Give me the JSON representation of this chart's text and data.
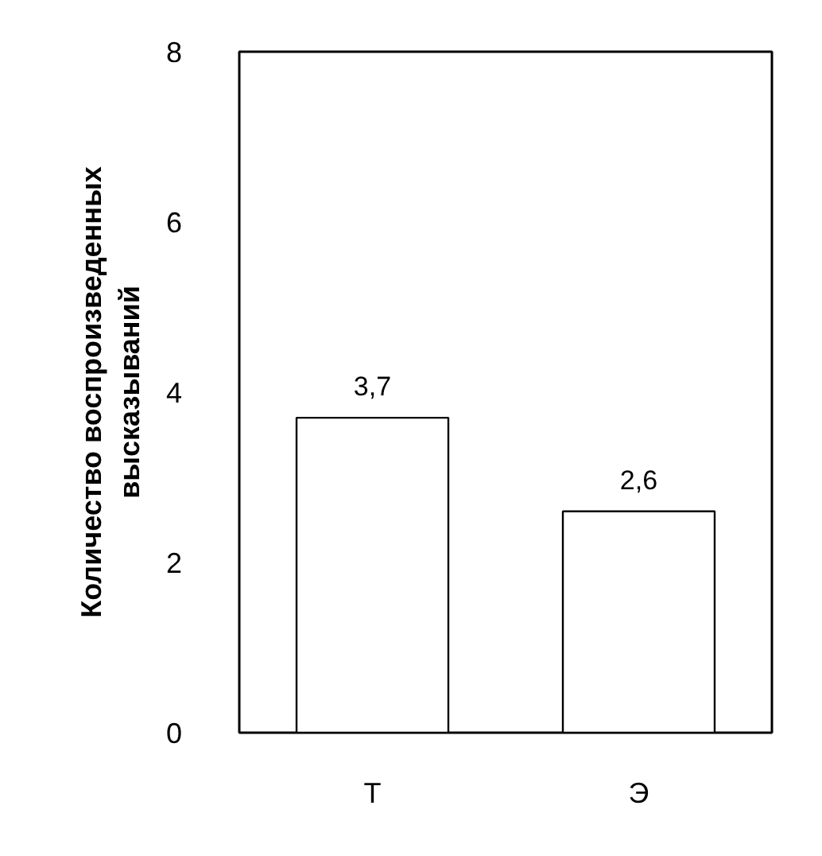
{
  "chart_data": {
    "type": "bar",
    "ylabel": "Количество воспроизведенных высказываний",
    "categories": [
      "Т",
      "Э"
    ],
    "values": [
      3.7,
      2.6
    ],
    "value_labels": [
      "3,7",
      "2,6"
    ],
    "color": "#ffffff",
    "ylim": [
      0,
      8
    ],
    "yticks": [
      0,
      2,
      4,
      6,
      8
    ],
    "grid": false
  }
}
